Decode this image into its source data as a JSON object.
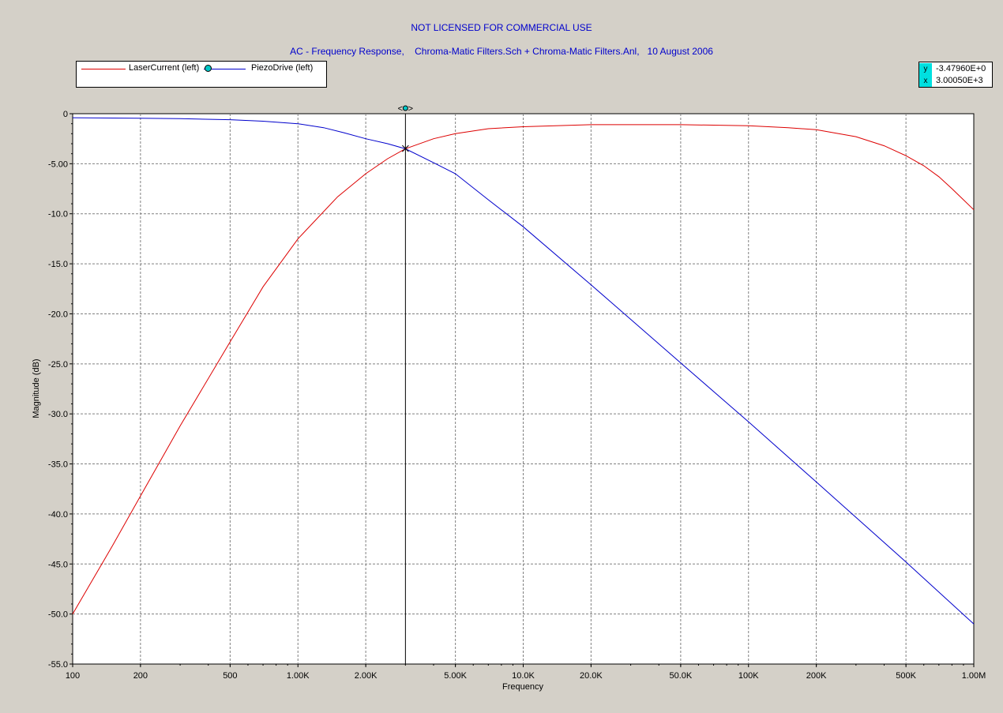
{
  "header": {
    "license": "NOT LICENSED FOR COMMERCIAL USE",
    "subtitle": "AC - Frequency Response,    Chroma-Matic Filters.Sch + Chroma-Matic Filters.Anl,   10 August 2006"
  },
  "legend": [
    {
      "label": "LaserCurrent (left)",
      "color": "#dd0000"
    },
    {
      "label": "PiezoDrive (left)",
      "color": "#0000cc"
    }
  ],
  "readout": {
    "y_key": "y",
    "y_value": "-3.47960E+0",
    "x_key": "x",
    "x_value": "3.00050E+3"
  },
  "cursor": {
    "x": 3000.5,
    "y": -3.4796,
    "handle_label": "<●>"
  },
  "chart_data": {
    "type": "line",
    "xscale": "log",
    "xlim": [
      100,
      1000000
    ],
    "ylim": [
      -55,
      0
    ],
    "xlabel": "Frequency",
    "ylabel": "Magnitude  (dB)",
    "grid": true,
    "legend_position": "top-left",
    "x_ticks": [
      {
        "v": 100,
        "label": "100"
      },
      {
        "v": 200,
        "label": "200"
      },
      {
        "v": 500,
        "label": "500"
      },
      {
        "v": 1000,
        "label": "1.00K"
      },
      {
        "v": 2000,
        "label": "2.00K"
      },
      {
        "v": 5000,
        "label": "5.00K"
      },
      {
        "v": 10000,
        "label": "10.0K"
      },
      {
        "v": 20000,
        "label": "20.0K"
      },
      {
        "v": 50000,
        "label": "50.0K"
      },
      {
        "v": 100000,
        "label": "100K"
      },
      {
        "v": 200000,
        "label": "200K"
      },
      {
        "v": 500000,
        "label": "500K"
      },
      {
        "v": 1000000,
        "label": "1.00M"
      }
    ],
    "y_ticks": [
      {
        "v": 0,
        "label": "0"
      },
      {
        "v": -5,
        "label": "-5.00"
      },
      {
        "v": -10,
        "label": "-10.0"
      },
      {
        "v": -15,
        "label": "-15.0"
      },
      {
        "v": -20,
        "label": "-20.0"
      },
      {
        "v": -25,
        "label": "-25.0"
      },
      {
        "v": -30,
        "label": "-30.0"
      },
      {
        "v": -35,
        "label": "-35.0"
      },
      {
        "v": -40,
        "label": "-40.0"
      },
      {
        "v": -45,
        "label": "-45.0"
      },
      {
        "v": -50,
        "label": "-50.0"
      },
      {
        "v": -55,
        "label": "-55.0"
      }
    ],
    "series": [
      {
        "name": "LaserCurrent (left)",
        "color": "#dd0000",
        "x": [
          100,
          150,
          200,
          300,
          500,
          700,
          1000,
          1500,
          2000,
          2500,
          3000,
          4000,
          5000,
          7000,
          10000,
          20000,
          50000,
          100000,
          150000,
          200000,
          300000,
          400000,
          500000,
          600000,
          700000,
          800000,
          900000,
          1000000
        ],
        "y": [
          -50.0,
          -43.2,
          -38.2,
          -31.2,
          -22.8,
          -17.3,
          -12.5,
          -8.3,
          -6.0,
          -4.5,
          -3.5,
          -2.5,
          -2.0,
          -1.5,
          -1.3,
          -1.1,
          -1.1,
          -1.2,
          -1.4,
          -1.6,
          -2.3,
          -3.2,
          -4.2,
          -5.2,
          -6.3,
          -7.5,
          -8.6,
          -9.6
        ]
      },
      {
        "name": "PiezoDrive (left)",
        "color": "#0000cc",
        "x": [
          100,
          200,
          300,
          500,
          700,
          1000,
          1300,
          1600,
          2000,
          2500,
          3000,
          4000,
          5000,
          7000,
          10000,
          20000,
          50000,
          100000,
          200000,
          500000,
          1000000
        ],
        "y": [
          -0.4,
          -0.45,
          -0.5,
          -0.6,
          -0.75,
          -1.0,
          -1.4,
          -1.9,
          -2.5,
          -3.0,
          -3.5,
          -4.9,
          -6.0,
          -8.6,
          -11.3,
          -17.1,
          -24.9,
          -30.8,
          -36.8,
          -44.8,
          -51.0
        ]
      }
    ]
  }
}
